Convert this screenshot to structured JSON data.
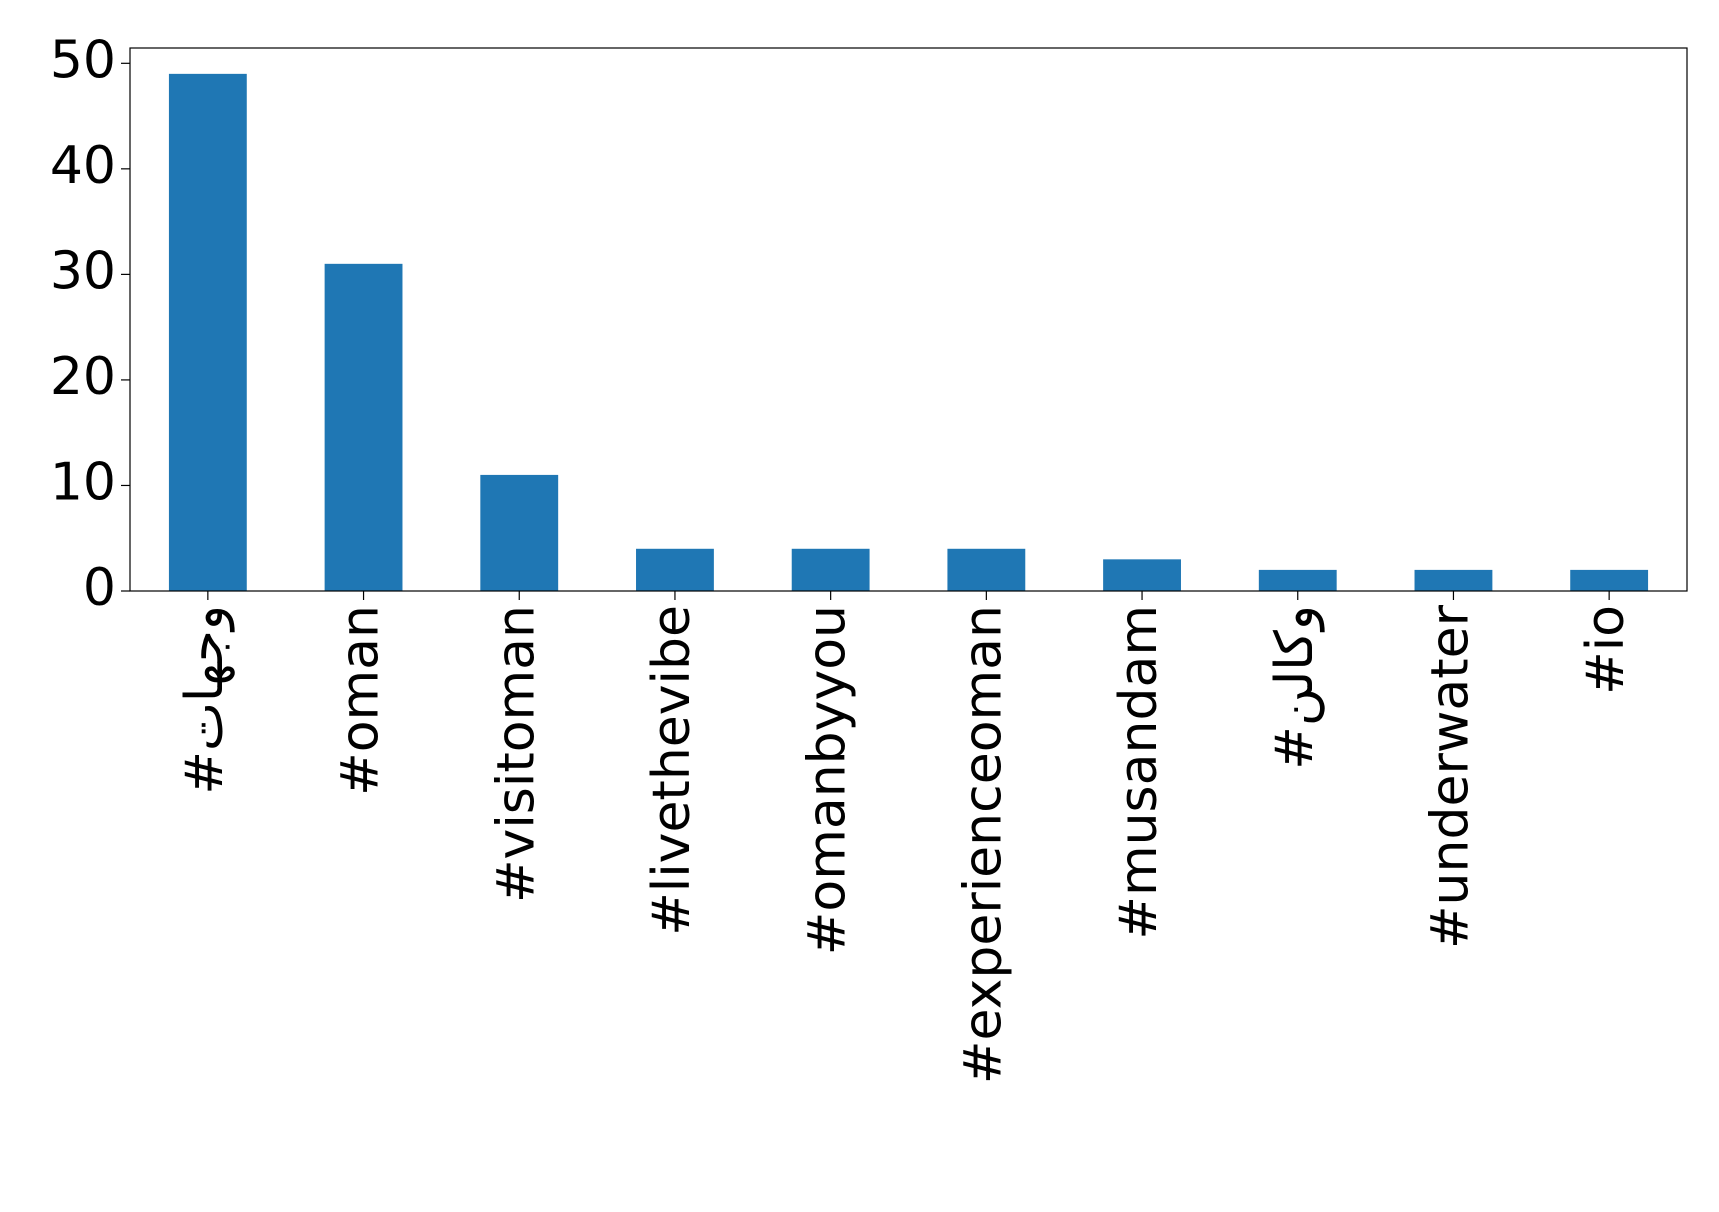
{
  "chart_data": {
    "type": "bar",
    "categories": [
      "#وجهات",
      "#oman",
      "#visitoman",
      "#livethevibe",
      "#omanbyyou",
      "#experienceoman",
      "#musandam",
      "#وكالن",
      "#underwater",
      "#io"
    ],
    "values": [
      49,
      31,
      11,
      4,
      4,
      4,
      3,
      2,
      2,
      2
    ],
    "color": "#1f77b4",
    "ylim": [
      0,
      51.45
    ],
    "yticks": [
      0,
      10,
      20,
      30,
      40,
      50
    ],
    "grid": false
  }
}
